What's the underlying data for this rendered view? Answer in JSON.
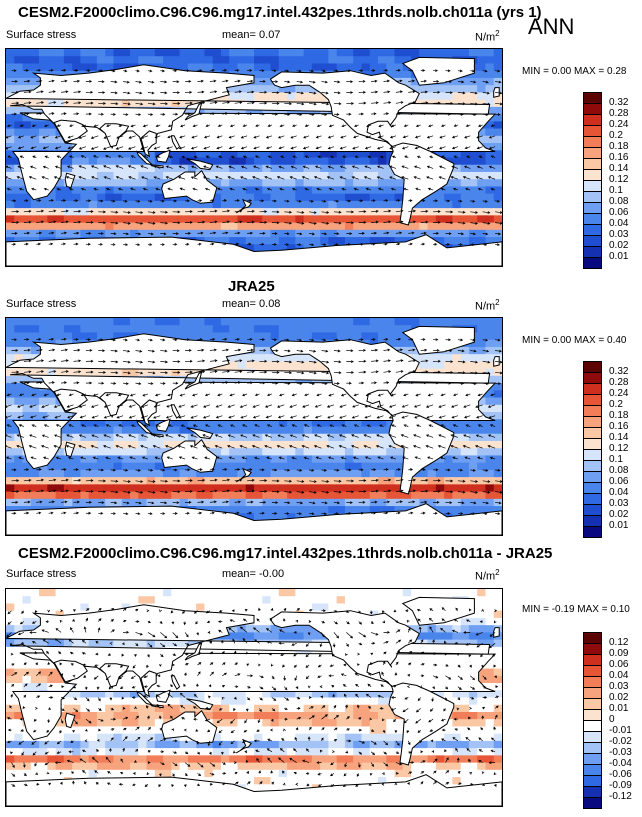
{
  "season": "ANN",
  "panels": [
    {
      "title": "CESM2.F2000climo.C96.C96.mg17.intel.432pes.1thrds.nolb.ch011a (yrs 1)",
      "variable": "Surface stress",
      "mean_label": "mean=",
      "mean": "0.07",
      "units": "N/m",
      "units_sup": "2",
      "minmax": "MIN =   0.00 MAX =   0.28",
      "colorbar_labels": [
        "0.32",
        "0.28",
        "0.24",
        "0.2",
        "0.18",
        "0.16",
        "0.14",
        "0.12",
        "0.1",
        "0.08",
        "0.06",
        "0.04",
        "0.03",
        "0.02",
        "0.01"
      ]
    },
    {
      "title": "JRA25",
      "variable": "Surface stress",
      "mean_label": "mean=",
      "mean": "0.08",
      "units": "N/m",
      "units_sup": "2",
      "minmax": "MIN =   0.00 MAX =   0.40",
      "colorbar_labels": [
        "0.32",
        "0.28",
        "0.24",
        "0.2",
        "0.18",
        "0.16",
        "0.14",
        "0.12",
        "0.1",
        "0.08",
        "0.06",
        "0.04",
        "0.03",
        "0.02",
        "0.01"
      ]
    },
    {
      "title": "CESM2.F2000climo.C96.C96.mg17.intel.432pes.1thrds.nolb.ch011a - JRA25",
      "variable": "Surface stress",
      "mean_label": "mean=",
      "mean": "-0.00",
      "units": "N/m",
      "units_sup": "2",
      "minmax": "MIN =  -0.19 MAX =   0.10",
      "colorbar_labels": [
        "0.12",
        "0.09",
        "0.06",
        "0.04",
        "0.03",
        "0.02",
        "0.01",
        "0",
        "-0.01",
        "-0.02",
        "-0.03",
        "-0.04",
        "-0.06",
        "-0.09",
        "-0.12"
      ]
    }
  ],
  "colors": {
    "sequential": [
      "#0a0a80",
      "#1530b0",
      "#1f4fd0",
      "#2f6ae4",
      "#4a85ec",
      "#6f9ff2",
      "#a3c3f7",
      "#d7e5fb",
      "#fbe3d0",
      "#fbc8a6",
      "#f7a47e",
      "#f17e58",
      "#e55536",
      "#cf2f1e",
      "#8f0a0a",
      "#5c0303"
    ],
    "diverging": [
      "#0a0a80",
      "#1530b0",
      "#2f6ae4",
      "#4a85ec",
      "#6f9ff2",
      "#a3c3f7",
      "#d7e5fb",
      "#ffffff",
      "#fbe3d0",
      "#fbc8a6",
      "#f7a47e",
      "#f17e58",
      "#e55536",
      "#cf2f1e",
      "#8f0a0a",
      "#5c0303"
    ],
    "land": "#ffffff",
    "coast": "#000000"
  },
  "chart_data": [
    {
      "type": "heatmap",
      "title": "CESM2.F2000climo.C96.C96.mg17.intel.432pes.1thrds.nolb.ch011a (yrs 1)",
      "variable": "Surface stress",
      "units": "N/m2",
      "mean": 0.07,
      "min": 0.0,
      "max": 0.28,
      "levels": [
        0.01,
        0.02,
        0.03,
        0.04,
        0.06,
        0.08,
        0.1,
        0.12,
        0.14,
        0.16,
        0.18,
        0.2,
        0.24,
        0.28,
        0.32
      ],
      "overlay": "wind stress vectors"
    },
    {
      "type": "heatmap",
      "title": "JRA25",
      "variable": "Surface stress",
      "units": "N/m2",
      "mean": 0.08,
      "min": 0.0,
      "max": 0.4,
      "levels": [
        0.01,
        0.02,
        0.03,
        0.04,
        0.06,
        0.08,
        0.1,
        0.12,
        0.14,
        0.16,
        0.18,
        0.2,
        0.24,
        0.28,
        0.32
      ],
      "overlay": "wind stress vectors"
    },
    {
      "type": "heatmap",
      "title": "CESM2.F2000climo.C96.C96.mg17.intel.432pes.1thrds.nolb.ch011a - JRA25",
      "variable": "Surface stress",
      "units": "N/m2",
      "mean": -0.0,
      "min": -0.19,
      "max": 0.1,
      "levels": [
        -0.12,
        -0.09,
        -0.06,
        -0.04,
        -0.03,
        -0.02,
        -0.01,
        0,
        0.01,
        0.02,
        0.03,
        0.04,
        0.06,
        0.09,
        0.12
      ],
      "overlay": "wind stress difference vectors"
    }
  ]
}
